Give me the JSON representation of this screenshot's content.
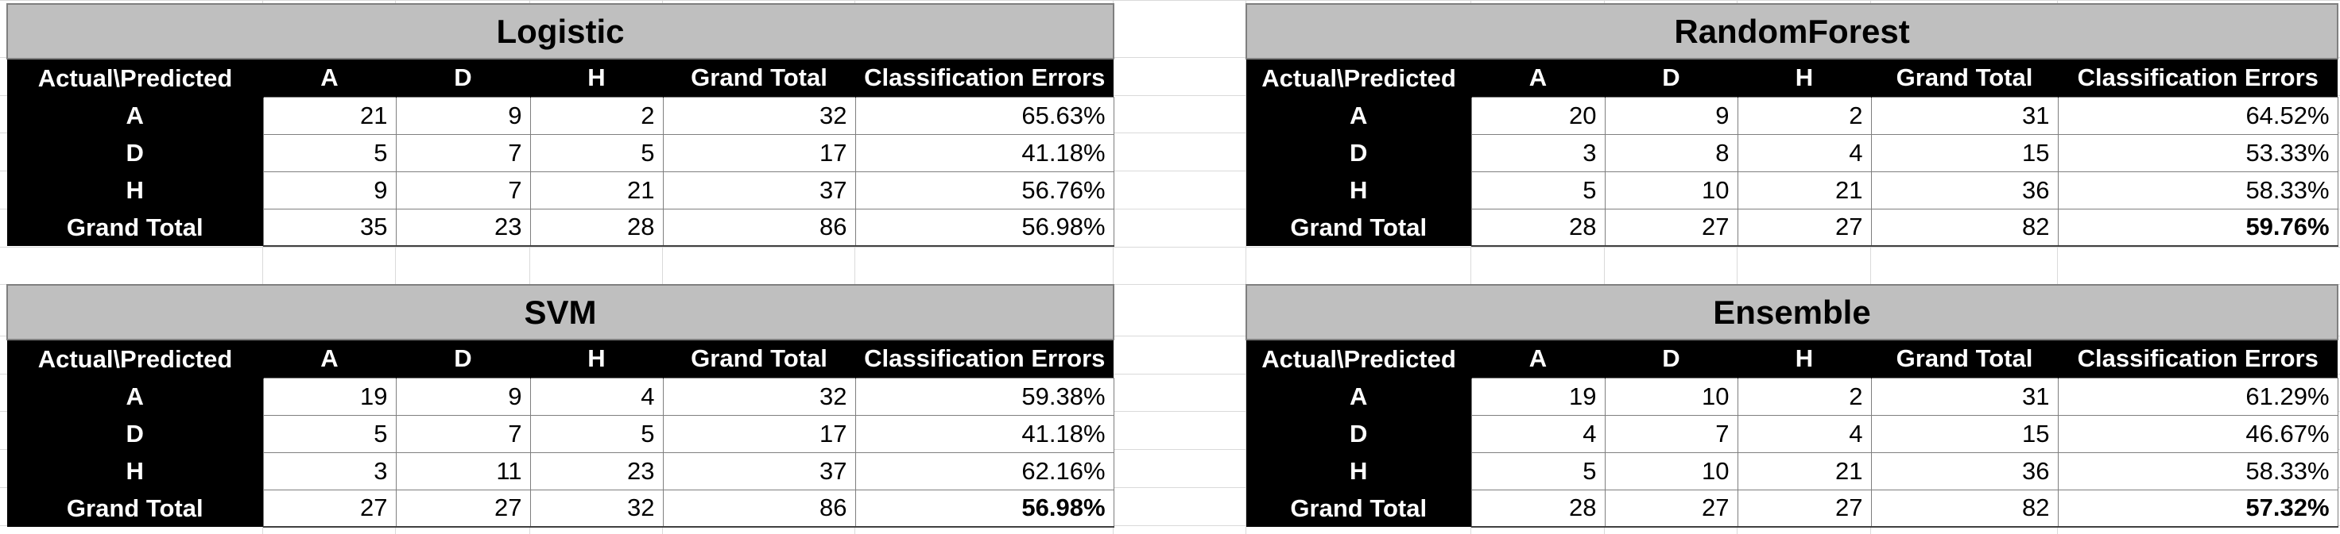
{
  "header": {
    "corner": "Actual\\Predicted",
    "cols": [
      "A",
      "D",
      "H",
      "Grand Total",
      "Classification Errors"
    ]
  },
  "tables": [
    {
      "title": "Logistic",
      "rows": [
        {
          "label": "A",
          "values": [
            "21",
            "9",
            "2",
            "32",
            "65.63%"
          ]
        },
        {
          "label": "D",
          "values": [
            "5",
            "7",
            "5",
            "17",
            "41.18%"
          ]
        },
        {
          "label": "H",
          "values": [
            "9",
            "7",
            "21",
            "37",
            "56.76%"
          ]
        },
        {
          "label": "Grand Total",
          "values": [
            "35",
            "23",
            "28",
            "86",
            "56.98%"
          ]
        }
      ],
      "bold_total_error": false
    },
    {
      "title": "RandomForest",
      "rows": [
        {
          "label": "A",
          "values": [
            "20",
            "9",
            "2",
            "31",
            "64.52%"
          ]
        },
        {
          "label": "D",
          "values": [
            "3",
            "8",
            "4",
            "15",
            "53.33%"
          ]
        },
        {
          "label": "H",
          "values": [
            "5",
            "10",
            "21",
            "36",
            "58.33%"
          ]
        },
        {
          "label": "Grand Total",
          "values": [
            "28",
            "27",
            "27",
            "82",
            "59.76%"
          ]
        }
      ],
      "bold_total_error": true
    },
    {
      "title": "SVM",
      "rows": [
        {
          "label": "A",
          "values": [
            "19",
            "9",
            "4",
            "32",
            "59.38%"
          ]
        },
        {
          "label": "D",
          "values": [
            "5",
            "7",
            "5",
            "17",
            "41.18%"
          ]
        },
        {
          "label": "H",
          "values": [
            "3",
            "11",
            "23",
            "37",
            "62.16%"
          ]
        },
        {
          "label": "Grand Total",
          "values": [
            "27",
            "27",
            "32",
            "86",
            "56.98%"
          ]
        }
      ],
      "bold_total_error": true
    },
    {
      "title": "Ensemble",
      "rows": [
        {
          "label": "A",
          "values": [
            "19",
            "10",
            "2",
            "31",
            "61.29%"
          ]
        },
        {
          "label": "D",
          "values": [
            "4",
            "7",
            "4",
            "15",
            "46.67%"
          ]
        },
        {
          "label": "H",
          "values": [
            "5",
            "10",
            "21",
            "36",
            "58.33%"
          ]
        },
        {
          "label": "Grand Total",
          "values": [
            "28",
            "27",
            "27",
            "82",
            "57.32%"
          ]
        }
      ],
      "bold_total_error": true
    }
  ]
}
